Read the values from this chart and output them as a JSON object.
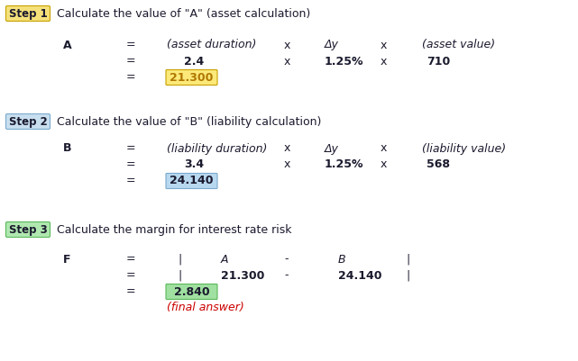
{
  "bg_color": "#ffffff",
  "text_color": "#1a1a2e",
  "font_size": 9,
  "step_font_size": 8.5,
  "step1": {
    "label": "Step 1",
    "label_bg": "#f5e17a",
    "label_border": "#c8a000",
    "text": "Calculate the value of \"A\" (asset calculation)",
    "result": "21.300",
    "result_bg": "#fce97a",
    "result_border": "#c8a000",
    "result_text_color": "#b07800"
  },
  "step2": {
    "label": "Step 2",
    "label_bg": "#c8dff0",
    "label_border": "#7aaacc",
    "text": "Calculate the value of \"B\" (liability calculation)",
    "result": "24.140",
    "result_bg": "#b8d8f0",
    "result_border": "#7aaacc",
    "result_text_color": "#1a1a2e"
  },
  "step3": {
    "label": "Step 3",
    "label_bg": "#b0e8b0",
    "label_border": "#5ab85a",
    "text": "Calculate the margin for interest rate risk",
    "result": "2.840",
    "result_bg": "#a0e0a0",
    "result_border": "#5ab85a",
    "result_text_color": "#1a1a2e",
    "final_label": "(final answer)",
    "final_color": "#cc0000"
  }
}
